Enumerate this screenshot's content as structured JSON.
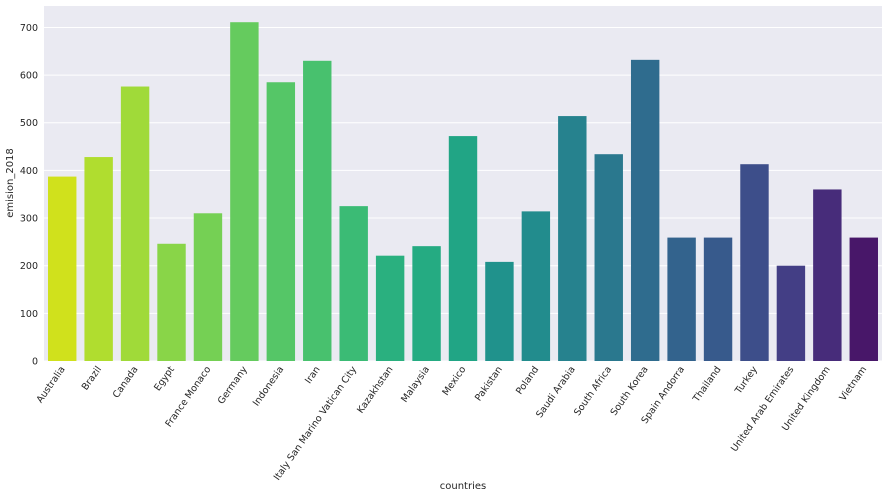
{
  "chart_data": {
    "type": "bar",
    "xlabel": "countries",
    "ylabel": "emision_2018",
    "ylim": [
      0,
      745
    ],
    "yticks": [
      0,
      100,
      200,
      300,
      400,
      500,
      600,
      700
    ],
    "grid": true,
    "background": "#eaeaf2",
    "palette": "viridis (reversed)",
    "categories": [
      "Australia",
      "Brazil",
      "Canada",
      "Egypt",
      "France Monaco",
      "Germany",
      "Indonesia",
      "Iran",
      "Italy San Marino Vatican City",
      "Kazakhstan",
      "Malaysia",
      "Mexico",
      "Pakistan",
      "Poland",
      "Saudi Arabia",
      "South Africa",
      "South Korea",
      "Spain Andorra",
      "Thailand",
      "Turkey",
      "United Arab Emirates",
      "United Kingdom",
      "Vietnam"
    ],
    "values": [
      387,
      428,
      576,
      246,
      310,
      711,
      585,
      630,
      325,
      221,
      241,
      472,
      208,
      314,
      514,
      434,
      632,
      259,
      259,
      413,
      200,
      360,
      259
    ],
    "colors": [
      "#d0e11c",
      "#b0dd2f",
      "#a0da39",
      "#89d548",
      "#75d054",
      "#65cb5e",
      "#55c667",
      "#48c16e",
      "#3bbb75",
      "#2ab07f",
      "#25ab82",
      "#21a585",
      "#20928c",
      "#228c8d",
      "#26828e",
      "#2a788e",
      "#2f6c8e",
      "#33638d",
      "#375a8c",
      "#3d4e8a",
      "#433e85",
      "#472c7a",
      "#481769"
    ]
  }
}
